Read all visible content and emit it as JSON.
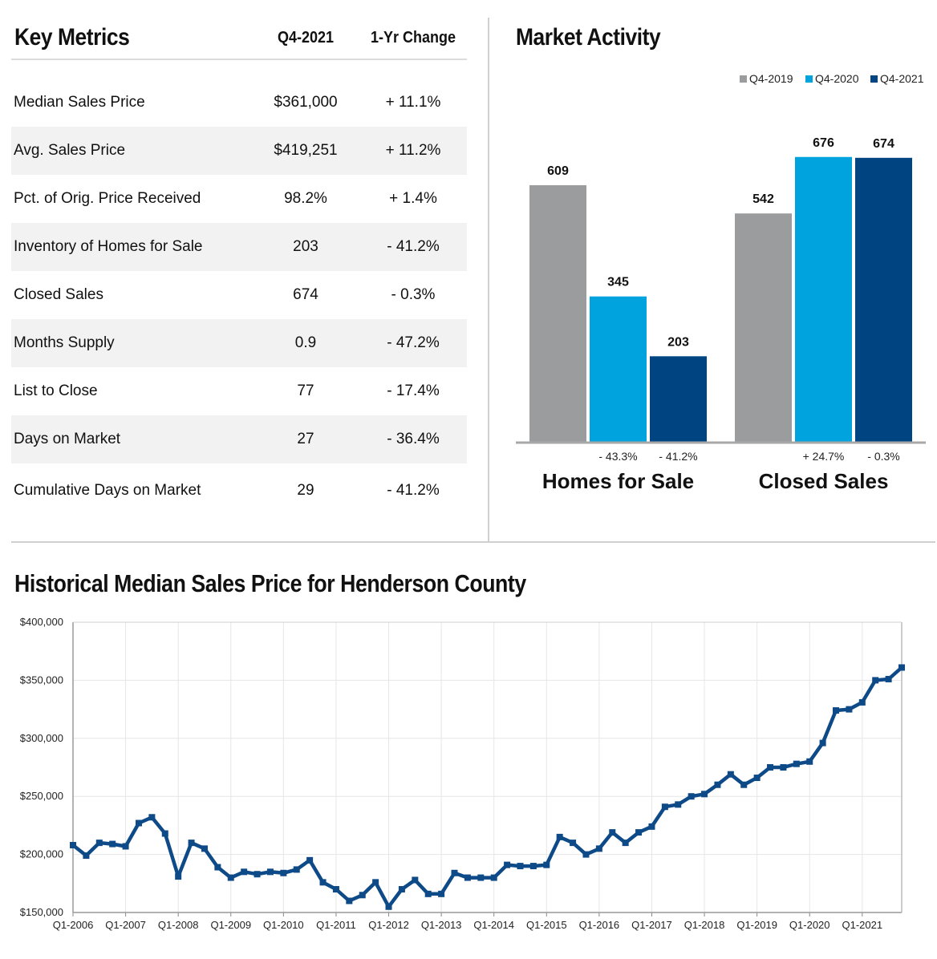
{
  "key_metrics": {
    "title": "Key Metrics",
    "col_period": "Q4-2021",
    "col_change": "1-Yr Change",
    "rows": [
      {
        "label": "Median Sales Price",
        "value": "$361,000",
        "change": "+ 11.1%"
      },
      {
        "label": "Avg. Sales Price",
        "value": "$419,251",
        "change": "+ 11.2%"
      },
      {
        "label": "Pct. of Orig. Price Received",
        "value": "98.2%",
        "change": "+ 1.4%"
      },
      {
        "label": "Inventory of Homes for Sale",
        "value": "203",
        "change": "- 41.2%"
      },
      {
        "label": "Closed Sales",
        "value": "674",
        "change": "- 0.3%"
      },
      {
        "label": "Months Supply",
        "value": "0.9",
        "change": "- 47.2%"
      },
      {
        "label": "List to Close",
        "value": "77",
        "change": "- 17.4%"
      },
      {
        "label": "Days on Market",
        "value": "27",
        "change": "- 36.4%"
      },
      {
        "label": "Cumulative Days on Market",
        "value": "29",
        "change": "- 41.2%"
      }
    ]
  },
  "market_activity": {
    "title": "Market Activity"
  },
  "historical": {
    "title": "Historical Median Sales Price for Henderson County"
  },
  "colors": {
    "q4_2019": "#9a9c9e",
    "q4_2020": "#00a3de",
    "q4_2021": "#004481",
    "line": "#0d4a87",
    "grid": "#e6e6e6"
  },
  "chart_data": [
    {
      "type": "bar",
      "title": "Market Activity",
      "categories": [
        "Homes for Sale",
        "Closed Sales"
      ],
      "series": [
        {
          "name": "Q4-2019",
          "values": [
            609,
            542
          ]
        },
        {
          "name": "Q4-2020",
          "values": [
            345,
            676
          ]
        },
        {
          "name": "Q4-2021",
          "values": [
            203,
            674
          ]
        }
      ],
      "changes": [
        [
          "- 43.3%",
          "- 41.2%"
        ],
        [
          "+ 24.7%",
          "- 0.3%"
        ]
      ],
      "ylim": [
        0,
        700
      ],
      "legend": "top-right",
      "grid": false
    },
    {
      "type": "line",
      "title": "Historical Median Sales Price for Henderson County",
      "ylim": [
        150000,
        400000
      ],
      "yticks": [
        150000,
        200000,
        250000,
        300000,
        350000,
        400000
      ],
      "ytick_labels": [
        "$150,000",
        "$200,000",
        "$250,000",
        "$300,000",
        "$350,000",
        "$400,000"
      ],
      "xtick_labels": [
        "Q1-2006",
        "Q1-2007",
        "Q1-2008",
        "Q1-2009",
        "Q1-2010",
        "Q1-2011",
        "Q1-2012",
        "Q1-2013",
        "Q1-2014",
        "Q1-2015",
        "Q1-2016",
        "Q1-2017",
        "Q1-2018",
        "Q1-2019",
        "Q1-2020",
        "Q1-2021"
      ],
      "grid": true,
      "x": [
        "Q1-2006",
        "Q2-2006",
        "Q3-2006",
        "Q4-2006",
        "Q1-2007",
        "Q2-2007",
        "Q3-2007",
        "Q4-2007",
        "Q1-2008",
        "Q2-2008",
        "Q3-2008",
        "Q4-2008",
        "Q1-2009",
        "Q2-2009",
        "Q3-2009",
        "Q4-2009",
        "Q1-2010",
        "Q2-2010",
        "Q3-2010",
        "Q4-2010",
        "Q1-2011",
        "Q2-2011",
        "Q3-2011",
        "Q4-2011",
        "Q1-2012",
        "Q2-2012",
        "Q3-2012",
        "Q4-2012",
        "Q1-2013",
        "Q2-2013",
        "Q3-2013",
        "Q4-2013",
        "Q1-2014",
        "Q2-2014",
        "Q3-2014",
        "Q4-2014",
        "Q1-2015",
        "Q2-2015",
        "Q3-2015",
        "Q4-2015",
        "Q1-2016",
        "Q2-2016",
        "Q3-2016",
        "Q4-2016",
        "Q1-2017",
        "Q2-2017",
        "Q3-2017",
        "Q4-2017",
        "Q1-2018",
        "Q2-2018",
        "Q3-2018",
        "Q4-2018",
        "Q1-2019",
        "Q2-2019",
        "Q3-2019",
        "Q4-2019",
        "Q1-2020",
        "Q2-2020",
        "Q3-2020",
        "Q4-2020",
        "Q1-2021",
        "Q2-2021",
        "Q3-2021",
        "Q4-2021"
      ],
      "series": [
        {
          "values": [
            208000,
            199000,
            210000,
            209000,
            207000,
            227000,
            232000,
            218000,
            181000,
            210000,
            205000,
            189000,
            180000,
            185000,
            183000,
            185000,
            184000,
            187000,
            195000,
            176000,
            170000,
            160000,
            165000,
            176000,
            155000,
            170000,
            178000,
            166000,
            166000,
            184000,
            180000,
            180000,
            180000,
            191000,
            190000,
            190000,
            191000,
            215000,
            210000,
            200000,
            205000,
            219000,
            210000,
            219000,
            224000,
            241000,
            243000,
            250000,
            252000,
            260000,
            269000,
            260000,
            266000,
            275000,
            275000,
            278000,
            280000,
            296000,
            324000,
            325000,
            331000,
            350000,
            351000,
            361000
          ]
        }
      ]
    }
  ]
}
